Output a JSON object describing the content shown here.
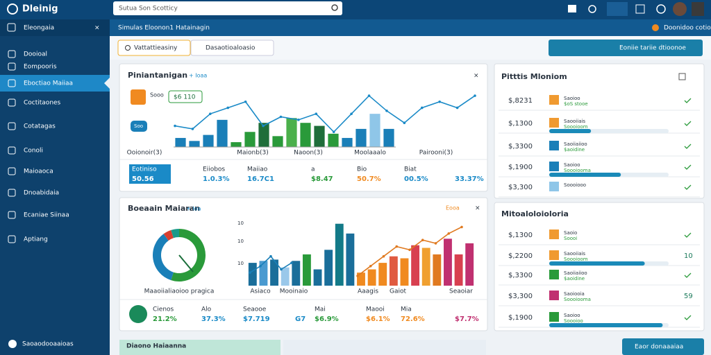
{
  "topbar": {
    "brand": "Dleinig",
    "search": "Sutua Son Scotticy"
  },
  "subbar": {
    "section": "Eleongaia",
    "breadcrumb": "Simulas Eloonon1 Hatainagin",
    "user": "Doonidoo cotioe"
  },
  "sidebar": {
    "items": [
      "Dooioal",
      "Eompooris",
      "Eboctiao Maiiaa",
      "Coctitaones",
      "Cotatagas",
      "Conoli",
      "Maioaoca",
      "Dnoabidaia",
      "Ecaniae Siinaa",
      "Aptiang"
    ],
    "active": 2,
    "footer": "Saoaodooaaioas"
  },
  "toolbar": {
    "tab": "Vattattieasiny",
    "dropdown": "Dasaotioaloasio",
    "button": "Eoniie tariie dtioonoe"
  },
  "panel1": {
    "title": "Piniantanigan",
    "tag": "+ Ioaa",
    "badge": "$6 110",
    "chip": "Soo",
    "widget": "Sooo",
    "categories": [
      "Ooionoir(3)",
      "Maionb(3)",
      "Naoon(3)",
      "Moolaaalo",
      "Pairooni(3)"
    ],
    "bars": {
      "values": [
        15,
        10,
        20,
        45,
        8,
        25,
        40,
        18,
        48,
        40,
        35,
        22,
        15,
        30,
        55,
        30
      ],
      "colors": [
        "#1a7fb8",
        "#1a7fb8",
        "#1a7fb8",
        "#1a7fb8",
        "#2a9a3a",
        "#2a9a3a",
        "#1f6e3a",
        "#2a9a3a",
        "#4bb04b",
        "#2a9a3a",
        "#1f6e3a",
        "#2a9a3a",
        "#1a7fb8",
        "#1a7fb8",
        "#8fc6e8",
        "#1a7fb8"
      ]
    },
    "line": [
      35,
      30,
      55,
      65,
      75,
      35,
      50,
      45,
      55,
      25,
      55,
      85,
      60,
      40,
      65,
      75,
      65,
      85
    ],
    "line_color": "#1a8ac7",
    "stats": [
      {
        "label": "Eotiniso",
        "value": "50.56"
      },
      {
        "label": "Eiiobos",
        "value": "1.0.3%"
      },
      {
        "label": "Maiiao",
        "value": "16.7C1"
      },
      {
        "label": "a",
        "value": "$8.47"
      },
      {
        "label": "Bio",
        "value": "50.7%"
      },
      {
        "label": "Biat",
        "value": "00.5%"
      },
      {
        "value": "33.37%"
      }
    ],
    "stat_colors": [
      "#ffffff",
      "#1a8ac7",
      "#1a8ac7",
      "#2a9a3a",
      "#f08a20",
      "#1a8ac7",
      "#1a8ac7"
    ]
  },
  "panel2": {
    "title": "Boeaain Maiaran",
    "tag": "+ Ioa",
    "tag2": "Eooa",
    "donut_label": "Maaoiialiaoioo pragica",
    "donut": {
      "values": [
        55,
        35,
        5,
        5
      ],
      "colors": [
        "#2a9a3a",
        "#1a7fb8",
        "#d84030",
        "#1a9a8a"
      ]
    },
    "axis_labels": [
      "10",
      "10",
      "10"
    ],
    "categories": [
      "Asiaco",
      "Mooinaio",
      "Aaagis",
      "Gaiot",
      "Seaoiar"
    ],
    "bars": {
      "values": [
        35,
        38,
        40,
        28,
        38,
        48,
        25,
        55,
        95,
        80,
        20,
        25,
        35,
        45,
        42,
        62,
        58,
        48,
        72,
        48,
        65
      ],
      "colors": [
        "#1a6e9a",
        "#4a9ad0",
        "#1a6e9a",
        "#9ac8ea",
        "#1a6e9a",
        "#2a9a3a",
        "#1a6e9a",
        "#1a6e9a",
        "#137a88",
        "#1a6e9a",
        "#f08a20",
        "#f08a20",
        "#f08a20",
        "#e05a40",
        "#f08a20",
        "#d84050",
        "#f0a030",
        "#e07a20",
        "#c03070",
        "#d84050",
        "#c03070"
      ]
    },
    "line1": [
      20,
      30,
      45,
      25,
      35
    ],
    "line2": [
      15,
      30,
      45,
      60,
      55,
      70,
      65,
      80,
      90
    ],
    "stats": [
      {
        "label": "Cienos",
        "value": "21.2%"
      },
      {
        "label": "Alo",
        "value": "37.3%"
      },
      {
        "label": "Seaooe",
        "value": "$7.719"
      },
      {
        "value": "G7"
      },
      {
        "label": "Mai",
        "value": "$6.9%"
      },
      {
        "label": "Maooi",
        "value": "$6.1%"
      },
      {
        "label": "Mia",
        "value": "72.6%"
      },
      {
        "value": "$7.7%"
      }
    ],
    "stat_colors": [
      "#2a9a3a",
      "#1a8ac7",
      "#1a8ac7",
      "#1a8ac7",
      "#2a9a3a",
      "#f08a20",
      "#f08a20",
      "#c03070"
    ]
  },
  "right1": {
    "title": "Pitttis Mloniom",
    "items": [
      {
        "value": "$,8231",
        "color": "#f09a30",
        "title": "Saoioo",
        "sub": "$oS stooe"
      },
      {
        "value": "$,1300",
        "color": "#f09a30",
        "title": "Saooiiais",
        "sub": "Soooioom",
        "progress": 0.35
      },
      {
        "value": "$,3300",
        "color": "#1a7fb8",
        "title": "Saoiiaiioo",
        "sub": "$aoidine"
      },
      {
        "value": "$,1900",
        "color": "#1a7fb8",
        "title": "Saoioo",
        "sub": "Soooiooma",
        "progress": 0.6
      },
      {
        "value": "$3,300",
        "color": "#8fc6e8",
        "title": "Soooiooo"
      }
    ]
  },
  "right2": {
    "title": "Mitoaloloioloria",
    "items": [
      {
        "value": "$,1300",
        "color": "#f09a30",
        "title": "Saoio",
        "sub": "Soooi"
      },
      {
        "value": "$,2200",
        "color": "#f09a30",
        "title": "Saooiiais",
        "sub": "Soooioom",
        "progress": 0.8,
        "score": "10"
      },
      {
        "value": "$,3300",
        "color": "#2a9a3a",
        "title": "Saoiiaiioo",
        "sub": "$aoidine"
      },
      {
        "value": "$3,300",
        "color": "#c03070",
        "title": "Saoiooia",
        "sub": "Soooiooma",
        "score": "59"
      },
      {
        "value": "$,1900",
        "color": "#2a9a3a",
        "title": "Saoioo",
        "sub": "Soooioo",
        "progress": 0.95
      }
    ]
  },
  "bottom": {
    "title": "Diaono Haiaanna",
    "button": "Eaor donaaaiaa"
  }
}
